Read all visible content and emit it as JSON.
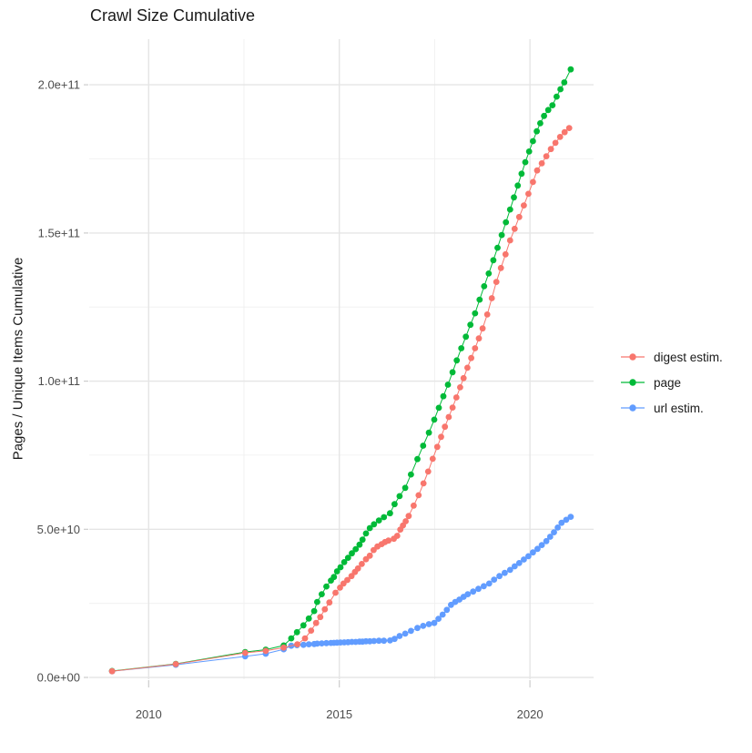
{
  "title": "Crawl Size Cumulative",
  "chart_data": {
    "type": "scatter",
    "title": "Crawl Size Cumulative",
    "xlabel": "",
    "ylabel": "Pages / Unique Items Cumulative",
    "grid": true,
    "legend_position": "right",
    "xlim": [
      2008.44,
      2021.67
    ],
    "ylim": [
      -600000000,
      215400000000
    ],
    "x_ticks": [
      2010,
      2015,
      2020
    ],
    "x_tick_labels": [
      "2010",
      "2015",
      "2020"
    ],
    "x_minor": [
      2012.5,
      2017.5
    ],
    "y_ticks": [
      0,
      50000000000,
      100000000000,
      150000000000,
      200000000000
    ],
    "y_tick_labels": [
      "0.0e+00",
      "5.0e+10",
      "1.0e+11",
      "1.5e+11",
      "2.0e+11"
    ],
    "y_minor": [
      25000000000,
      75000000000,
      125000000000,
      175000000000
    ],
    "series": [
      {
        "name": "digest estim.",
        "color": "#F8766D",
        "points": [
          [
            2009.04,
            2100000000.0
          ],
          [
            2010.71,
            4500000000.0
          ],
          [
            2012.53,
            8300000000.0
          ],
          [
            2013.07,
            9000000000.0
          ],
          [
            2013.54,
            10100000000.0
          ],
          [
            2013.9,
            11200000000.0
          ],
          [
            2014.1,
            13200000000.0
          ],
          [
            2014.26,
            15800000000.0
          ],
          [
            2014.39,
            18400000000.0
          ],
          [
            2014.5,
            20400000000.0
          ],
          [
            2014.62,
            23000000000.0
          ],
          [
            2014.74,
            25300000000.0
          ],
          [
            2014.9,
            28600000000.0
          ],
          [
            2015.02,
            30300000000.0
          ],
          [
            2015.11,
            31700000000.0
          ],
          [
            2015.21,
            32900000000.0
          ],
          [
            2015.32,
            34200000000.0
          ],
          [
            2015.41,
            35600000000.0
          ],
          [
            2015.49,
            36800000000.0
          ],
          [
            2015.59,
            38300000000.0
          ],
          [
            2015.7,
            39900000000.0
          ],
          [
            2015.8,
            41100000000.0
          ],
          [
            2015.9,
            43000000000.0
          ],
          [
            2016.0,
            44200000000.0
          ],
          [
            2016.11,
            45000000000.0
          ],
          [
            2016.2,
            45700000000.0
          ],
          [
            2016.29,
            46200000000.0
          ],
          [
            2016.43,
            46800000000.0
          ],
          [
            2016.52,
            47800000000.0
          ],
          [
            2016.6,
            49900000000.0
          ],
          [
            2016.67,
            51300000000.0
          ],
          [
            2016.74,
            52700000000.0
          ],
          [
            2016.82,
            54500000000.0
          ],
          [
            2016.95,
            58000000000.0
          ],
          [
            2017.08,
            61500000000.0
          ],
          [
            2017.21,
            65500000000.0
          ],
          [
            2017.33,
            69500000000.0
          ],
          [
            2017.45,
            73800000000.0
          ],
          [
            2017.57,
            77800000000.0
          ],
          [
            2017.67,
            81200000000.0
          ],
          [
            2017.77,
            84600000000.0
          ],
          [
            2017.87,
            87900000000.0
          ],
          [
            2017.97,
            91100000000.0
          ],
          [
            2018.07,
            94500000000.0
          ],
          [
            2018.17,
            97900000000.0
          ],
          [
            2018.26,
            101000000000.0
          ],
          [
            2018.36,
            104500000000.0
          ],
          [
            2018.46,
            107800000000.0
          ],
          [
            2018.56,
            111100000000.0
          ],
          [
            2018.66,
            114400000000.0
          ],
          [
            2018.76,
            117800000000.0
          ],
          [
            2018.88,
            122500000000.0
          ],
          [
            2019.0,
            128000000000.0
          ],
          [
            2019.12,
            133500000000.0
          ],
          [
            2019.24,
            138200000000.0
          ],
          [
            2019.36,
            142800000000.0
          ],
          [
            2019.48,
            147500000000.0
          ],
          [
            2019.6,
            151400000000.0
          ],
          [
            2019.72,
            155400000000.0
          ],
          [
            2019.84,
            159300000000.0
          ],
          [
            2019.96,
            163200000000.0
          ],
          [
            2020.08,
            167200000000.0
          ],
          [
            2020.19,
            171100000000.0
          ],
          [
            2020.31,
            173500000000.0
          ],
          [
            2020.43,
            175900000000.0
          ],
          [
            2020.55,
            178300000000.0
          ],
          [
            2020.67,
            180400000000.0
          ],
          [
            2020.79,
            182400000000.0
          ],
          [
            2020.91,
            184000000000.0
          ],
          [
            2021.03,
            185400000000.0
          ]
        ]
      },
      {
        "name": "page",
        "color": "#00BA38",
        "points": [
          [
            2009.04,
            2200000000.0
          ],
          [
            2010.71,
            4600000000.0
          ],
          [
            2012.53,
            8600000000.0
          ],
          [
            2013.07,
            9400000000.0
          ],
          [
            2013.54,
            10800000000.0
          ],
          [
            2013.74,
            13200000000.0
          ],
          [
            2013.89,
            15300000000.0
          ],
          [
            2014.06,
            17600000000.0
          ],
          [
            2014.2,
            19900000000.0
          ],
          [
            2014.34,
            22400000000.0
          ],
          [
            2014.42,
            25500000000.0
          ],
          [
            2014.54,
            28100000000.0
          ],
          [
            2014.66,
            30700000000.0
          ],
          [
            2014.78,
            32700000000.0
          ],
          [
            2014.86,
            33900000000.0
          ],
          [
            2014.94,
            35800000000.0
          ],
          [
            2015.03,
            37200000000.0
          ],
          [
            2015.13,
            38900000000.0
          ],
          [
            2015.23,
            40400000000.0
          ],
          [
            2015.33,
            41900000000.0
          ],
          [
            2015.43,
            43300000000.0
          ],
          [
            2015.53,
            44800000000.0
          ],
          [
            2015.61,
            46500000000.0
          ],
          [
            2015.7,
            48600000000.0
          ],
          [
            2015.8,
            50400000000.0
          ],
          [
            2015.91,
            51700000000.0
          ],
          [
            2016.04,
            53000000000.0
          ],
          [
            2016.17,
            54100000000.0
          ],
          [
            2016.33,
            55400000000.0
          ],
          [
            2016.45,
            58500000000.0
          ],
          [
            2016.58,
            61200000000.0
          ],
          [
            2016.73,
            64000000000.0
          ],
          [
            2016.88,
            68500000000.0
          ],
          [
            2017.05,
            73700000000.0
          ],
          [
            2017.2,
            78200000000.0
          ],
          [
            2017.35,
            82600000000.0
          ],
          [
            2017.49,
            87000000000.0
          ],
          [
            2017.61,
            91000000000.0
          ],
          [
            2017.73,
            94900000000.0
          ],
          [
            2017.85,
            98800000000.0
          ],
          [
            2017.97,
            103000000000.0
          ],
          [
            2018.08,
            107000000000.0
          ],
          [
            2018.2,
            111100000000.0
          ],
          [
            2018.32,
            115000000000.0
          ],
          [
            2018.44,
            119000000000.0
          ],
          [
            2018.56,
            122900000000.0
          ],
          [
            2018.68,
            127500000000.0
          ],
          [
            2018.8,
            132000000000.0
          ],
          [
            2018.92,
            136300000000.0
          ],
          [
            2019.04,
            140800000000.0
          ],
          [
            2019.15,
            145000000000.0
          ],
          [
            2019.26,
            149300000000.0
          ],
          [
            2019.37,
            153600000000.0
          ],
          [
            2019.48,
            157900000000.0
          ],
          [
            2019.58,
            162000000000.0
          ],
          [
            2019.68,
            166000000000.0
          ],
          [
            2019.78,
            170000000000.0
          ],
          [
            2019.88,
            173900000000.0
          ],
          [
            2019.98,
            177500000000.0
          ],
          [
            2020.08,
            181000000000.0
          ],
          [
            2020.18,
            184300000000.0
          ],
          [
            2020.27,
            187000000000.0
          ],
          [
            2020.37,
            189500000000.0
          ],
          [
            2020.48,
            191500000000.0
          ],
          [
            2020.59,
            193100000000.0
          ],
          [
            2020.7,
            196000000000.0
          ],
          [
            2020.8,
            198500000000.0
          ],
          [
            2020.9,
            200800000000.0
          ],
          [
            2021.07,
            205200000000.0
          ]
        ]
      },
      {
        "name": "url estim.",
        "color": "#619CFF",
        "points": [
          [
            2009.04,
            2100000000.0
          ],
          [
            2010.71,
            4300000000.0
          ],
          [
            2012.53,
            7100000000.0
          ],
          [
            2013.07,
            8000000000.0
          ],
          [
            2013.54,
            9500000000.0
          ],
          [
            2013.74,
            10700000000.0
          ],
          [
            2013.89,
            10900000000.0
          ],
          [
            2014.06,
            11000000000.0
          ],
          [
            2014.2,
            11200000000.0
          ],
          [
            2014.34,
            11300000000.0
          ],
          [
            2014.42,
            11400000000.0
          ],
          [
            2014.54,
            11500000000.0
          ],
          [
            2014.66,
            11600000000.0
          ],
          [
            2014.78,
            11650000000.0
          ],
          [
            2014.86,
            11700000000.0
          ],
          [
            2014.94,
            11750000000.0
          ],
          [
            2015.03,
            11800000000.0
          ],
          [
            2015.13,
            11850000000.0
          ],
          [
            2015.23,
            11900000000.0
          ],
          [
            2015.33,
            12000000000.0
          ],
          [
            2015.43,
            12000000000.0
          ],
          [
            2015.53,
            12100000000.0
          ],
          [
            2015.61,
            12100000000.0
          ],
          [
            2015.7,
            12200000000.0
          ],
          [
            2015.8,
            12200000000.0
          ],
          [
            2015.91,
            12300000000.0
          ],
          [
            2016.04,
            12400000000.0
          ],
          [
            2016.17,
            12400000000.0
          ],
          [
            2016.33,
            12500000000.0
          ],
          [
            2016.45,
            13000000000.0
          ],
          [
            2016.58,
            14000000000.0
          ],
          [
            2016.73,
            14800000000.0
          ],
          [
            2016.88,
            15700000000.0
          ],
          [
            2017.05,
            16700000000.0
          ],
          [
            2017.2,
            17400000000.0
          ],
          [
            2017.35,
            18000000000.0
          ],
          [
            2017.49,
            18400000000.0
          ],
          [
            2017.6,
            19800000000.0
          ],
          [
            2017.71,
            21200000000.0
          ],
          [
            2017.82,
            22800000000.0
          ],
          [
            2017.93,
            24500000000.0
          ],
          [
            2018.04,
            25500000000.0
          ],
          [
            2018.15,
            26300000000.0
          ],
          [
            2018.26,
            27200000000.0
          ],
          [
            2018.37,
            28100000000.0
          ],
          [
            2018.51,
            29000000000.0
          ],
          [
            2018.65,
            29900000000.0
          ],
          [
            2018.79,
            30800000000.0
          ],
          [
            2018.93,
            31700000000.0
          ],
          [
            2019.06,
            33000000000.0
          ],
          [
            2019.2,
            34200000000.0
          ],
          [
            2019.34,
            35300000000.0
          ],
          [
            2019.48,
            36300000000.0
          ],
          [
            2019.6,
            37500000000.0
          ],
          [
            2019.72,
            38600000000.0
          ],
          [
            2019.84,
            39800000000.0
          ],
          [
            2019.96,
            40900000000.0
          ],
          [
            2020.08,
            42200000000.0
          ],
          [
            2020.2,
            43400000000.0
          ],
          [
            2020.31,
            44700000000.0
          ],
          [
            2020.43,
            46000000000.0
          ],
          [
            2020.53,
            47500000000.0
          ],
          [
            2020.63,
            49000000000.0
          ],
          [
            2020.73,
            50600000000.0
          ],
          [
            2020.83,
            52200000000.0
          ],
          [
            2020.95,
            53200000000.0
          ],
          [
            2021.07,
            54200000000.0
          ]
        ]
      }
    ]
  }
}
